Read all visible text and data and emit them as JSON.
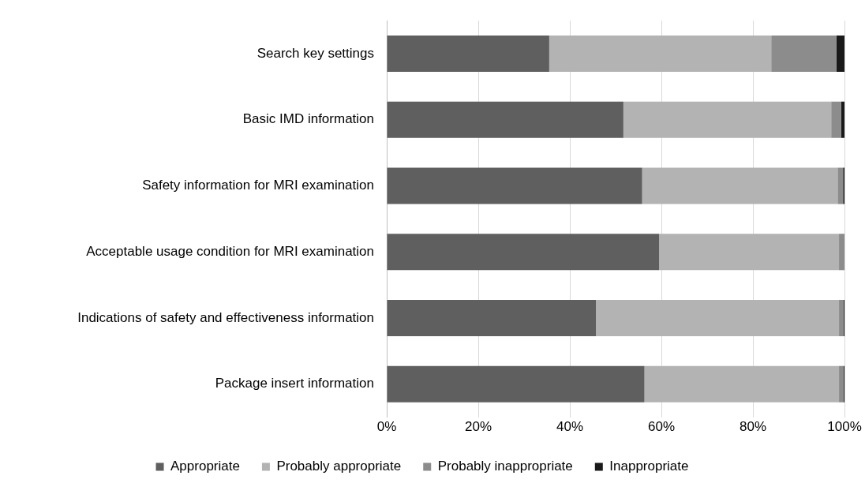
{
  "chart_data": {
    "type": "bar",
    "orientation": "horizontal",
    "stacked": true,
    "categories": [
      "Search key settings",
      "Basic IMD information",
      "Safety information for MRI examination",
      "Acceptable usage condition for MRI examination",
      "Indications of safety and effectiveness information",
      "Package insert information"
    ],
    "series": [
      {
        "name": "Appropriate",
        "color": "#5f5f5f",
        "values": [
          35.5,
          51.7,
          55.8,
          59.5,
          45.7,
          56.3
        ]
      },
      {
        "name": "Probably appropriate",
        "color": "#b3b3b3",
        "values": [
          48.5,
          45.4,
          42.7,
          39.3,
          53.1,
          42.5
        ]
      },
      {
        "name": "Probably inappropriate",
        "color": "#8c8c8c",
        "values": [
          14.2,
          2.2,
          1.2,
          1.2,
          1.0,
          1.0
        ]
      },
      {
        "name": "Inappropriate",
        "color": "#1a1a1a",
        "values": [
          1.8,
          0.7,
          0.3,
          0,
          0.2,
          0.2
        ]
      }
    ],
    "xlim": [
      0,
      100
    ],
    "xticks": [
      {
        "value": 0,
        "label": "0%"
      },
      {
        "value": 20,
        "label": "20%"
      },
      {
        "value": 40,
        "label": "40%"
      },
      {
        "value": 60,
        "label": "60%"
      },
      {
        "value": 80,
        "label": "80%"
      },
      {
        "value": 100,
        "label": "100%"
      }
    ],
    "grid": "x",
    "legend": "bottom"
  }
}
